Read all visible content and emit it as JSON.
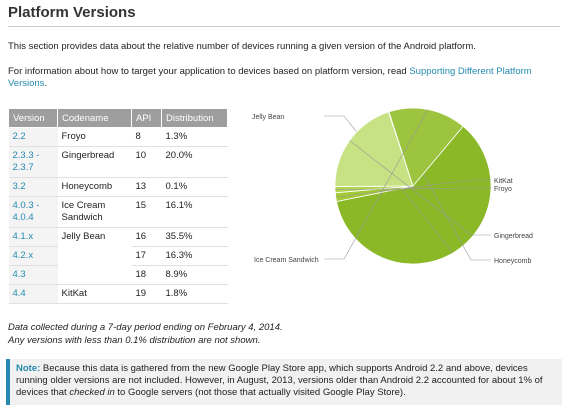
{
  "page": {
    "title": "Platform Versions",
    "intro": "This section provides data about the relative number of devices running a given version of the Android platform.",
    "target_info_prefix": "For information about how to target your application to devices based on platform version, read ",
    "target_info_link": "Supporting Different Platform Versions",
    "target_info_suffix": "."
  },
  "table": {
    "headers": [
      "Version",
      "Codename",
      "API",
      "Distribution"
    ],
    "rows": [
      {
        "version": "2.2",
        "codename": "Froyo",
        "api": "8",
        "distribution": "1.3%"
      },
      {
        "version": "2.3.3 - 2.3.7",
        "codename": "Gingerbread",
        "api": "10",
        "distribution": "20.0%"
      },
      {
        "version": "3.2",
        "codename": "Honeycomb",
        "api": "13",
        "distribution": "0.1%"
      },
      {
        "version": "4.0.3 - 4.0.4",
        "codename": "Ice Cream Sandwich",
        "api": "15",
        "distribution": "16.1%"
      },
      {
        "version": "4.1.x",
        "codename": "Jelly Bean",
        "api": "16",
        "distribution": "35.5%"
      },
      {
        "version": "4.2.x",
        "codename": "",
        "api": "17",
        "distribution": "16.3%"
      },
      {
        "version": "4.3",
        "codename": "",
        "api": "18",
        "distribution": "8.9%"
      },
      {
        "version": "4.4",
        "codename": "KitKat",
        "api": "19",
        "distribution": "1.8%"
      }
    ]
  },
  "chart_data": {
    "type": "pie",
    "slices": [
      {
        "label": "Jelly Bean",
        "value": 60.7,
        "color": "#8ab827"
      },
      {
        "label": "KitKat",
        "value": 1.8,
        "color": "#a1c935"
      },
      {
        "label": "Froyo",
        "value": 1.3,
        "color": "#b4d64d"
      },
      {
        "label": "Gingerbread",
        "value": 20.0,
        "color": "#c7e283"
      },
      {
        "label": "Honeycomb",
        "value": 0.1,
        "color": "#b9d968"
      },
      {
        "label": "Ice Cream Sandwich",
        "value": 16.1,
        "color": "#9cc43f"
      }
    ]
  },
  "footnotes": {
    "line1": "Data collected during a 7-day period ending on February 4, 2014.",
    "line2": "Any versions with less than 0.1% distribution are not shown."
  },
  "note": {
    "label": "Note:",
    "text_before": " Because this data is gathered from the new Google Play Store app, which supports Android 2.2 and above, devices running older versions are not included. However, in August, 2013, versions older than Android 2.2 accounted for about 1% of devices that ",
    "emphasis": "checked in",
    "text_after": " to Google servers (not those that actually visited Google Play Store)."
  },
  "colors": {
    "link": "#258aaf",
    "table_header": "#9e9e9e",
    "note_border": "#258aaf"
  }
}
